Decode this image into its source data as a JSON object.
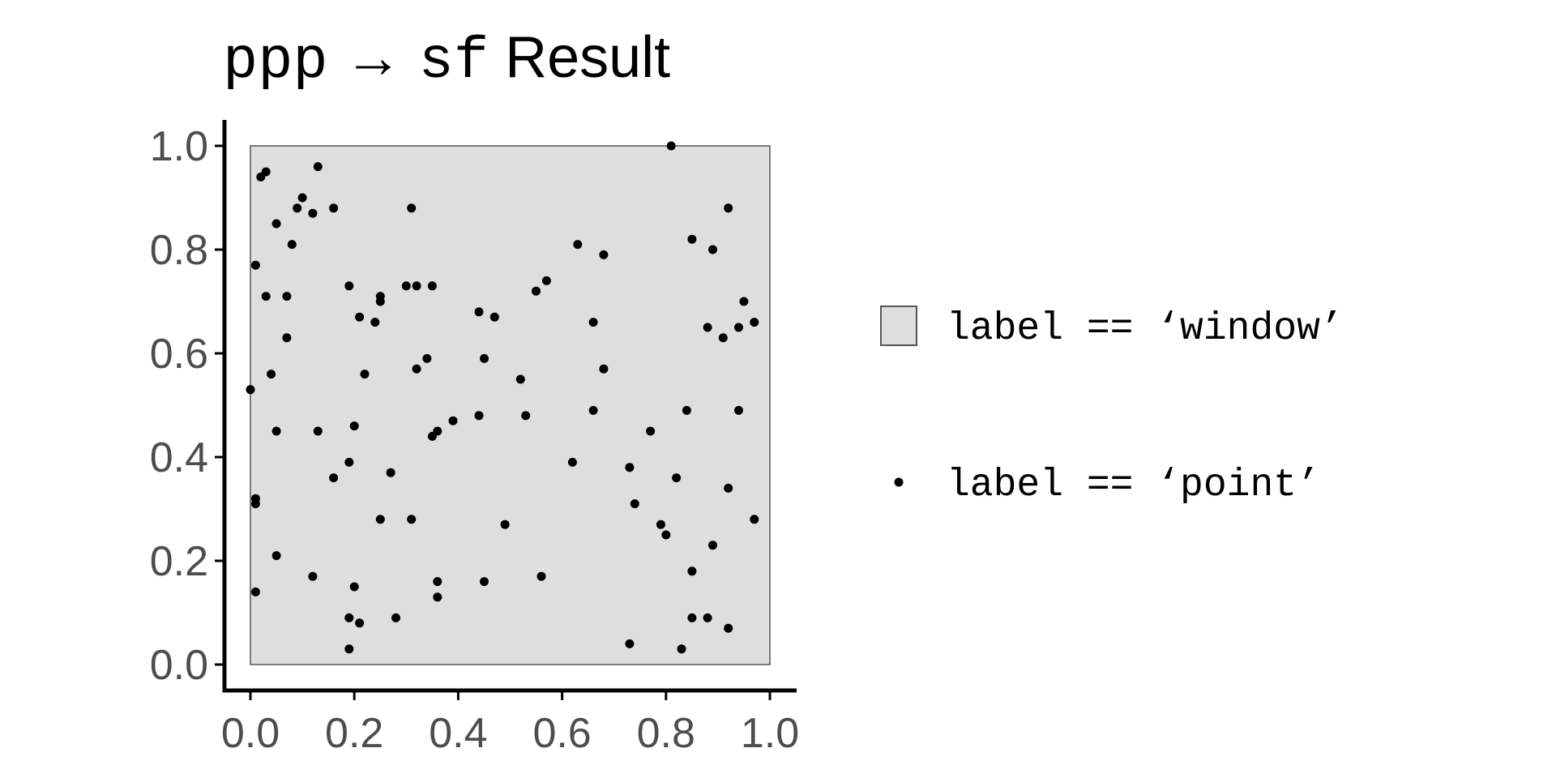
{
  "chart_data": {
    "type": "scatter",
    "title_parts": [
      {
        "text": "ppp",
        "style": "code"
      },
      {
        "text": " → ",
        "style": "text"
      },
      {
        "text": "sf",
        "style": "code"
      },
      {
        "text": " Result",
        "style": "text"
      }
    ],
    "xlabel": "",
    "ylabel": "",
    "xlim": [
      0,
      1
    ],
    "ylim": [
      0,
      1
    ],
    "x_ticks": [
      "0.0",
      "0.2",
      "0.4",
      "0.6",
      "0.8",
      "1.0"
    ],
    "y_ticks": [
      "0.0",
      "0.2",
      "0.4",
      "0.6",
      "0.8",
      "1.0"
    ],
    "grid": false,
    "legend_position": "right",
    "window": {
      "xmin": 0,
      "xmax": 1,
      "ymin": 0,
      "ymax": 1
    },
    "legend": [
      {
        "label": "label == ‘window’",
        "symbol": "square"
      },
      {
        "label": "label == ‘point’",
        "symbol": "dot"
      }
    ],
    "colors": {
      "window_fill": "#dedede",
      "window_border": "#555555",
      "point": "#000000",
      "axis": "#000000",
      "tick_label": "#4d4d4d",
      "title": "#000000"
    },
    "points": [
      [
        0.81,
        1.0
      ],
      [
        0.13,
        0.96
      ],
      [
        0.03,
        0.95
      ],
      [
        0.02,
        0.94
      ],
      [
        0.1,
        0.9
      ],
      [
        0.12,
        0.87
      ],
      [
        0.16,
        0.88
      ],
      [
        0.31,
        0.88
      ],
      [
        0.92,
        0.88
      ],
      [
        0.09,
        0.88
      ],
      [
        0.05,
        0.85
      ],
      [
        0.85,
        0.82
      ],
      [
        0.63,
        0.81
      ],
      [
        0.08,
        0.81
      ],
      [
        0.89,
        0.8
      ],
      [
        0.68,
        0.79
      ],
      [
        0.01,
        0.77
      ],
      [
        0.57,
        0.74
      ],
      [
        0.19,
        0.73
      ],
      [
        0.3,
        0.73
      ],
      [
        0.32,
        0.73
      ],
      [
        0.35,
        0.73
      ],
      [
        0.55,
        0.72
      ],
      [
        0.03,
        0.71
      ],
      [
        0.07,
        0.71
      ],
      [
        0.25,
        0.71
      ],
      [
        0.25,
        0.7
      ],
      [
        0.95,
        0.7
      ],
      [
        0.44,
        0.68
      ],
      [
        0.21,
        0.67
      ],
      [
        0.47,
        0.67
      ],
      [
        0.24,
        0.66
      ],
      [
        0.66,
        0.66
      ],
      [
        0.97,
        0.66
      ],
      [
        0.88,
        0.65
      ],
      [
        0.94,
        0.65
      ],
      [
        0.07,
        0.63
      ],
      [
        0.91,
        0.63
      ],
      [
        0.34,
        0.59
      ],
      [
        0.45,
        0.59
      ],
      [
        0.68,
        0.57
      ],
      [
        0.32,
        0.57
      ],
      [
        0.04,
        0.56
      ],
      [
        0.22,
        0.56
      ],
      [
        0.52,
        0.55
      ],
      [
        0.0,
        0.53
      ],
      [
        0.84,
        0.49
      ],
      [
        0.94,
        0.49
      ],
      [
        0.66,
        0.49
      ],
      [
        0.44,
        0.48
      ],
      [
        0.53,
        0.48
      ],
      [
        0.39,
        0.47
      ],
      [
        0.2,
        0.46
      ],
      [
        0.05,
        0.45
      ],
      [
        0.13,
        0.45
      ],
      [
        0.36,
        0.45
      ],
      [
        0.77,
        0.45
      ],
      [
        0.35,
        0.44
      ],
      [
        0.62,
        0.39
      ],
      [
        0.19,
        0.39
      ],
      [
        0.73,
        0.38
      ],
      [
        0.27,
        0.37
      ],
      [
        0.82,
        0.36
      ],
      [
        0.16,
        0.36
      ],
      [
        0.92,
        0.34
      ],
      [
        0.01,
        0.32
      ],
      [
        0.01,
        0.31
      ],
      [
        0.74,
        0.31
      ],
      [
        0.25,
        0.28
      ],
      [
        0.31,
        0.28
      ],
      [
        0.97,
        0.28
      ],
      [
        0.79,
        0.27
      ],
      [
        0.49,
        0.27
      ],
      [
        0.8,
        0.25
      ],
      [
        0.89,
        0.23
      ],
      [
        0.05,
        0.21
      ],
      [
        0.85,
        0.18
      ],
      [
        0.12,
        0.17
      ],
      [
        0.56,
        0.17
      ],
      [
        0.36,
        0.16
      ],
      [
        0.45,
        0.16
      ],
      [
        0.2,
        0.15
      ],
      [
        0.01,
        0.14
      ],
      [
        0.36,
        0.13
      ],
      [
        0.19,
        0.09
      ],
      [
        0.28,
        0.09
      ],
      [
        0.85,
        0.09
      ],
      [
        0.88,
        0.09
      ],
      [
        0.21,
        0.08
      ],
      [
        0.92,
        0.07
      ],
      [
        0.73,
        0.04
      ],
      [
        0.19,
        0.03
      ],
      [
        0.83,
        0.03
      ]
    ]
  }
}
